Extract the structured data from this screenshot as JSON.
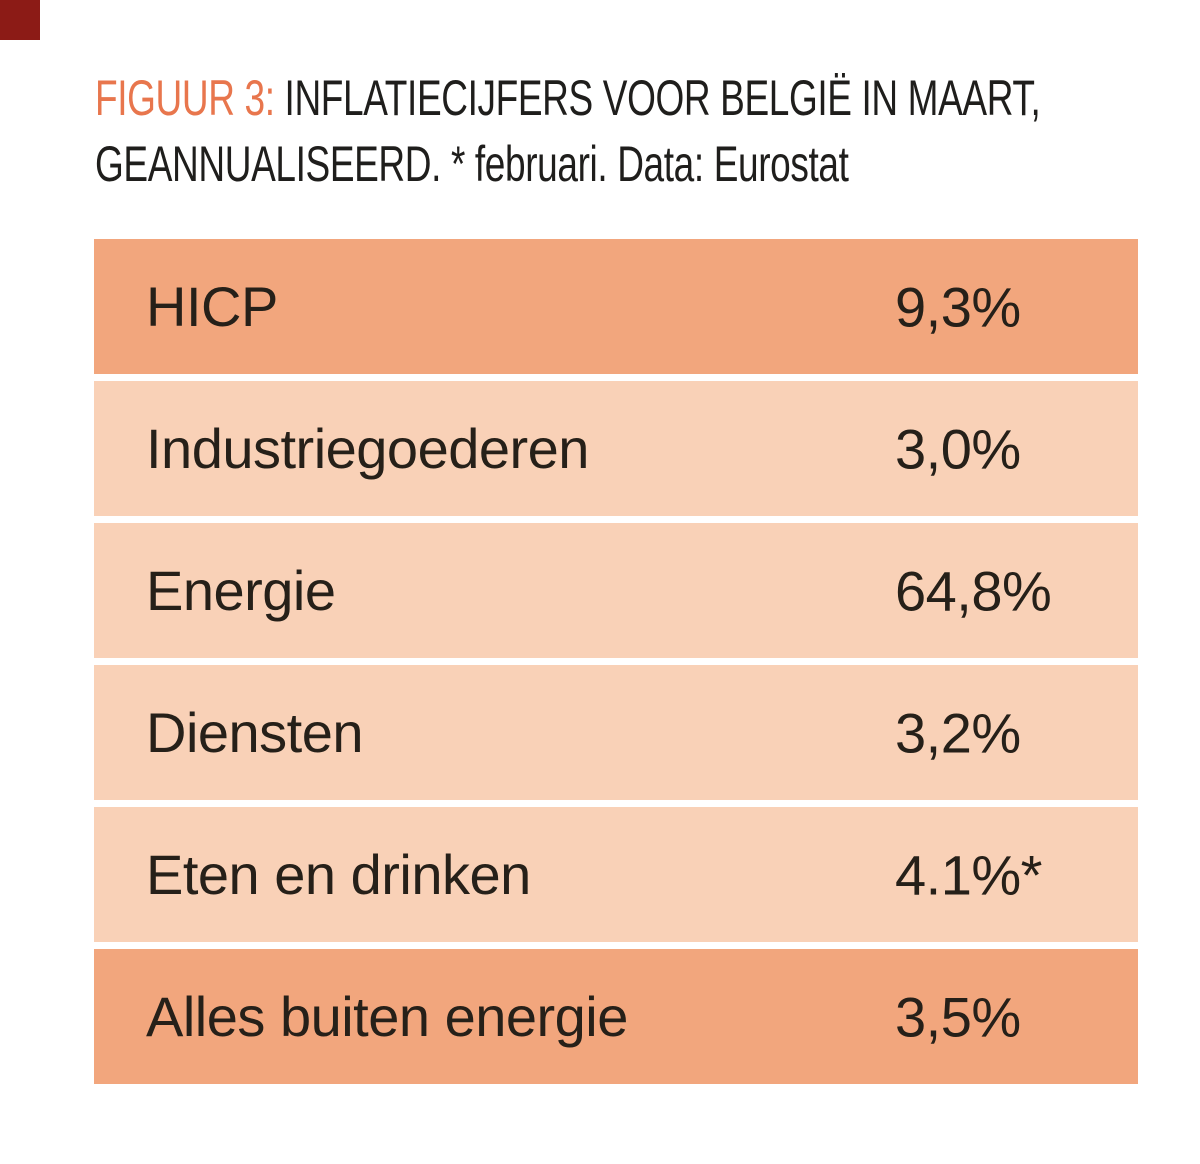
{
  "figure": {
    "label": "FIGUUR 3:",
    "title_line1_rest": " INFLATIECIJFERS VOOR BELGIË IN MAART,",
    "title_line2": "GEANNUALISEERD. * februari. Data: Eurostat"
  },
  "colors": {
    "row_dark": "#f2a67d",
    "row_light": "#f9d1b7",
    "accent_orange": "#e8764d",
    "text_dark": "#262019",
    "title_black": "#1f1e1c",
    "corner_red": "#8c1b16",
    "page_bg": "#ffffff"
  },
  "chart_data": {
    "type": "table",
    "title": "FIGUUR 3: INFLATIECIJFERS VOOR BELGIË IN MAART, GEANNUALISEERD. * februari. Data: Eurostat",
    "footnote": "* februari",
    "source": "Eurostat",
    "columns": [
      "category",
      "inflation_annualized"
    ],
    "rows": [
      {
        "label": "HICP",
        "value": "9,3%",
        "value_numeric": 9.3,
        "emphasis": true
      },
      {
        "label": "Industriegoederen",
        "value": "3,0%",
        "value_numeric": 3.0,
        "emphasis": false
      },
      {
        "label": "Energie",
        "value": "64,8%",
        "value_numeric": 64.8,
        "emphasis": false
      },
      {
        "label": "Diensten",
        "value": "3,2%",
        "value_numeric": 3.2,
        "emphasis": false
      },
      {
        "label": "Eten en drinken",
        "value": "4.1%*",
        "value_numeric": 4.1,
        "emphasis": false,
        "note": "* februari"
      },
      {
        "label": "Alles buiten energie",
        "value": "3,5%",
        "value_numeric": 3.5,
        "emphasis": true
      }
    ]
  }
}
